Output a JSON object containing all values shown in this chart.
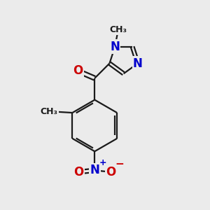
{
  "background_color": "#ebebeb",
  "bond_color": "#1a1a1a",
  "bond_width": 1.6,
  "atom_colors": {
    "C": "#1a1a1a",
    "N": "#0000cc",
    "O": "#cc0000"
  },
  "font_size_atom": 11,
  "figsize": [
    3.0,
    3.0
  ],
  "dpi": 100,
  "xlim": [
    0,
    10
  ],
  "ylim": [
    0,
    10
  ]
}
